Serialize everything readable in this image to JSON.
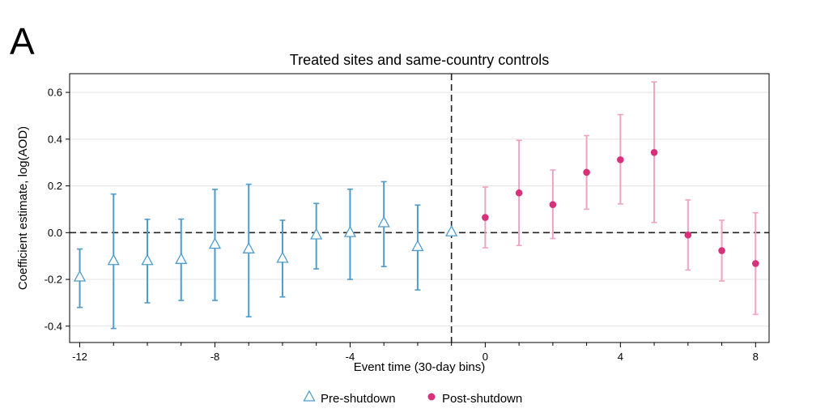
{
  "panel_label": "A",
  "chart_data": {
    "type": "scatter",
    "title": "Treated sites and same-country controls",
    "xlabel": "Event time (30-day bins)",
    "ylabel": "Coefficient estimate, log(AOD)",
    "xlim": [
      -12.3,
      8.4
    ],
    "ylim": [
      -0.47,
      0.68
    ],
    "xticks": [
      -12,
      -8,
      -4,
      0,
      4,
      8
    ],
    "xticks_minor": [
      -11,
      -10,
      -9,
      -7,
      -6,
      -5,
      -3,
      -2,
      -1,
      1,
      2,
      3,
      5,
      6,
      7
    ],
    "yticks": [
      -0.4,
      -0.2,
      0.0,
      0.2,
      0.4,
      0.6
    ],
    "ytick_labels": [
      "-0.4",
      "-0.2",
      "0.0",
      "0.2",
      "0.4",
      "0.6"
    ],
    "grid": true,
    "reference_lines": {
      "x": -1,
      "y": 0
    },
    "legend_position": "bottom",
    "series": [
      {
        "name": "Pre-shutdown",
        "marker": "triangle-open",
        "color": "#4f9ccb",
        "points": [
          {
            "x": -12,
            "y": -0.19,
            "lo": -0.32,
            "hi": -0.07
          },
          {
            "x": -11,
            "y": -0.12,
            "lo": -0.41,
            "hi": 0.165
          },
          {
            "x": -10,
            "y": -0.12,
            "lo": -0.3,
            "hi": 0.057
          },
          {
            "x": -9,
            "y": -0.115,
            "lo": -0.29,
            "hi": 0.058
          },
          {
            "x": -8,
            "y": -0.05,
            "lo": -0.29,
            "hi": 0.185
          },
          {
            "x": -7,
            "y": -0.07,
            "lo": -0.36,
            "hi": 0.207
          },
          {
            "x": -6,
            "y": -0.11,
            "lo": -0.275,
            "hi": 0.053
          },
          {
            "x": -5,
            "y": -0.01,
            "lo": -0.155,
            "hi": 0.125
          },
          {
            "x": -4,
            "y": 0.0,
            "lo": -0.2,
            "hi": 0.186
          },
          {
            "x": -3,
            "y": 0.042,
            "lo": -0.145,
            "hi": 0.218
          },
          {
            "x": -2,
            "y": -0.06,
            "lo": -0.245,
            "hi": 0.118
          },
          {
            "x": -1,
            "y": 0.003,
            "lo": null,
            "hi": null
          }
        ]
      },
      {
        "name": "Post-shutdown",
        "marker": "circle-filled",
        "color": "#d6317a",
        "bar_color": "#eea3c0",
        "points": [
          {
            "x": 0,
            "y": 0.065,
            "lo": -0.065,
            "hi": 0.195
          },
          {
            "x": 1,
            "y": 0.17,
            "lo": -0.055,
            "hi": 0.395
          },
          {
            "x": 2,
            "y": 0.12,
            "lo": -0.025,
            "hi": 0.268
          },
          {
            "x": 3,
            "y": 0.258,
            "lo": 0.1,
            "hi": 0.415
          },
          {
            "x": 4,
            "y": 0.312,
            "lo": 0.123,
            "hi": 0.505
          },
          {
            "x": 5,
            "y": 0.343,
            "lo": 0.043,
            "hi": 0.645
          },
          {
            "x": 6,
            "y": -0.01,
            "lo": -0.16,
            "hi": 0.14
          },
          {
            "x": 7,
            "y": -0.077,
            "lo": -0.207,
            "hi": 0.053
          },
          {
            "x": 8,
            "y": -0.132,
            "lo": -0.35,
            "hi": 0.085
          }
        ]
      }
    ]
  }
}
